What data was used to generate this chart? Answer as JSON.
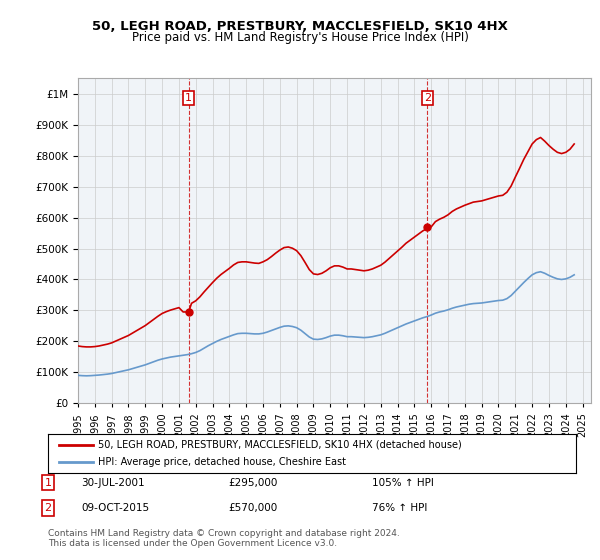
{
  "title": "50, LEGH ROAD, PRESTBURY, MACCLESFIELD, SK10 4HX",
  "subtitle": "Price paid vs. HM Land Registry's House Price Index (HPI)",
  "ylabel_ticks": [
    "£0",
    "£100K",
    "£200K",
    "£300K",
    "£400K",
    "£500K",
    "£600K",
    "£700K",
    "£800K",
    "£900K",
    "£1M"
  ],
  "ytick_values": [
    0,
    100000,
    200000,
    300000,
    400000,
    500000,
    600000,
    700000,
    800000,
    900000,
    1000000
  ],
  "ylim": [
    0,
    1050000
  ],
  "xlim_start": 1995.0,
  "xlim_end": 2025.5,
  "xlabel_years": [
    "1995",
    "1996",
    "1997",
    "1998",
    "1999",
    "2000",
    "2001",
    "2002",
    "2003",
    "2004",
    "2005",
    "2006",
    "2007",
    "2008",
    "2009",
    "2010",
    "2011",
    "2012",
    "2013",
    "2014",
    "2015",
    "2016",
    "2017",
    "2018",
    "2019",
    "2020",
    "2021",
    "2022",
    "2023",
    "2024",
    "2025"
  ],
  "sale1_x": 2001.58,
  "sale1_y": 295000,
  "sale1_label": "1",
  "sale2_x": 2015.77,
  "sale2_y": 570000,
  "sale2_label": "2",
  "sale_color": "#cc0000",
  "hpi_color": "#6699cc",
  "vline_color": "#cc0000",
  "grid_color": "#cccccc",
  "bg_color": "#ffffff",
  "plot_bg_color": "#f0f4f8",
  "legend_label_red": "50, LEGH ROAD, PRESTBURY, MACCLESFIELD, SK10 4HX (detached house)",
  "legend_label_blue": "HPI: Average price, detached house, Cheshire East",
  "annotation1_date": "30-JUL-2001",
  "annotation1_price": "£295,000",
  "annotation1_hpi": "105% ↑ HPI",
  "annotation2_date": "09-OCT-2015",
  "annotation2_price": "£570,000",
  "annotation2_hpi": "76% ↑ HPI",
  "footer": "Contains HM Land Registry data © Crown copyright and database right 2024.\nThis data is licensed under the Open Government Licence v3.0.",
  "hpi_data_x": [
    1995.0,
    1995.25,
    1995.5,
    1995.75,
    1996.0,
    1996.25,
    1996.5,
    1996.75,
    1997.0,
    1997.25,
    1997.5,
    1997.75,
    1998.0,
    1998.25,
    1998.5,
    1998.75,
    1999.0,
    1999.25,
    1999.5,
    1999.75,
    2000.0,
    2000.25,
    2000.5,
    2000.75,
    2001.0,
    2001.25,
    2001.5,
    2001.75,
    2002.0,
    2002.25,
    2002.5,
    2002.75,
    2003.0,
    2003.25,
    2003.5,
    2003.75,
    2004.0,
    2004.25,
    2004.5,
    2004.75,
    2005.0,
    2005.25,
    2005.5,
    2005.75,
    2006.0,
    2006.25,
    2006.5,
    2006.75,
    2007.0,
    2007.25,
    2007.5,
    2007.75,
    2008.0,
    2008.25,
    2008.5,
    2008.75,
    2009.0,
    2009.25,
    2009.5,
    2009.75,
    2010.0,
    2010.25,
    2010.5,
    2010.75,
    2011.0,
    2011.25,
    2011.5,
    2011.75,
    2012.0,
    2012.25,
    2012.5,
    2012.75,
    2013.0,
    2013.25,
    2013.5,
    2013.75,
    2014.0,
    2014.25,
    2014.5,
    2014.75,
    2015.0,
    2015.25,
    2015.5,
    2015.75,
    2016.0,
    2016.25,
    2016.5,
    2016.75,
    2017.0,
    2017.25,
    2017.5,
    2017.75,
    2018.0,
    2018.25,
    2018.5,
    2018.75,
    2019.0,
    2019.25,
    2019.5,
    2019.75,
    2020.0,
    2020.25,
    2020.5,
    2020.75,
    2021.0,
    2021.25,
    2021.5,
    2021.75,
    2022.0,
    2022.25,
    2022.5,
    2022.75,
    2023.0,
    2023.25,
    2023.5,
    2023.75,
    2024.0,
    2024.25,
    2024.5
  ],
  "hpi_data_y": [
    90000,
    89000,
    88500,
    89000,
    90000,
    91000,
    92500,
    94000,
    96000,
    99000,
    102000,
    105000,
    108000,
    112000,
    116000,
    120000,
    124000,
    129000,
    134000,
    139000,
    143000,
    146000,
    149000,
    151000,
    153000,
    155000,
    157000,
    160000,
    164000,
    170000,
    178000,
    186000,
    193000,
    200000,
    206000,
    211000,
    216000,
    221000,
    225000,
    226000,
    226000,
    225000,
    224000,
    224000,
    226000,
    230000,
    235000,
    240000,
    245000,
    249000,
    250000,
    248000,
    244000,
    236000,
    225000,
    214000,
    207000,
    206000,
    208000,
    212000,
    217000,
    220000,
    220000,
    218000,
    215000,
    215000,
    214000,
    213000,
    212000,
    213000,
    215000,
    218000,
    221000,
    226000,
    232000,
    238000,
    244000,
    250000,
    256000,
    261000,
    266000,
    271000,
    276000,
    280000,
    285000,
    291000,
    295000,
    298000,
    302000,
    307000,
    311000,
    314000,
    317000,
    320000,
    322000,
    323000,
    324000,
    326000,
    328000,
    330000,
    332000,
    333000,
    338000,
    348000,
    362000,
    376000,
    390000,
    403000,
    415000,
    422000,
    425000,
    420000,
    413000,
    407000,
    402000,
    400000,
    402000,
    407000,
    415000
  ],
  "red_data_x": [
    1995.0,
    1995.25,
    1995.5,
    1995.75,
    1996.0,
    1996.25,
    1996.5,
    1996.75,
    1997.0,
    1997.25,
    1997.5,
    1997.75,
    1998.0,
    1998.25,
    1998.5,
    1998.75,
    1999.0,
    1999.25,
    1999.5,
    1999.75,
    2000.0,
    2000.25,
    2000.5,
    2000.75,
    2001.0,
    2001.25,
    2001.58,
    2001.75,
    2002.0,
    2002.25,
    2002.5,
    2002.75,
    2003.0,
    2003.25,
    2003.5,
    2003.75,
    2004.0,
    2004.25,
    2004.5,
    2004.75,
    2005.0,
    2005.25,
    2005.5,
    2005.75,
    2006.0,
    2006.25,
    2006.5,
    2006.75,
    2007.0,
    2007.25,
    2007.5,
    2007.75,
    2008.0,
    2008.25,
    2008.5,
    2008.75,
    2009.0,
    2009.25,
    2009.5,
    2009.75,
    2010.0,
    2010.25,
    2010.5,
    2010.75,
    2011.0,
    2011.25,
    2011.5,
    2011.75,
    2012.0,
    2012.25,
    2012.5,
    2012.75,
    2013.0,
    2013.25,
    2013.5,
    2013.75,
    2014.0,
    2014.25,
    2014.5,
    2014.75,
    2015.0,
    2015.25,
    2015.5,
    2015.77,
    2016.0,
    2016.25,
    2016.5,
    2016.75,
    2017.0,
    2017.25,
    2017.5,
    2017.75,
    2018.0,
    2018.25,
    2018.5,
    2018.75,
    2019.0,
    2019.25,
    2019.5,
    2019.75,
    2020.0,
    2020.25,
    2020.5,
    2020.75,
    2021.0,
    2021.25,
    2021.5,
    2021.75,
    2022.0,
    2022.25,
    2022.5,
    2022.75,
    2023.0,
    2023.25,
    2023.5,
    2023.75,
    2024.0,
    2024.25,
    2024.5
  ],
  "red_data_y": [
    185000,
    183000,
    182000,
    182000,
    183000,
    185000,
    188000,
    191000,
    195000,
    201000,
    207000,
    213000,
    219000,
    227000,
    235000,
    243000,
    251000,
    261000,
    271000,
    281000,
    290000,
    296000,
    301000,
    305000,
    309000,
    295000,
    295000,
    323000,
    331000,
    344000,
    360000,
    375000,
    390000,
    404000,
    416000,
    426000,
    436000,
    447000,
    455000,
    457000,
    457000,
    455000,
    453000,
    452000,
    457000,
    464000,
    474000,
    485000,
    495000,
    503000,
    505000,
    501000,
    493000,
    477000,
    455000,
    432000,
    418000,
    416000,
    420000,
    428000,
    438000,
    444000,
    444000,
    440000,
    434000,
    434000,
    432000,
    430000,
    428000,
    430000,
    434000,
    440000,
    446000,
    456000,
    468000,
    480000,
    492000,
    504000,
    517000,
    527000,
    537000,
    547000,
    557000,
    565000,
    570000,
    587000,
    595000,
    601000,
    609000,
    620000,
    628000,
    634000,
    640000,
    645000,
    650000,
    652000,
    654000,
    658000,
    662000,
    666000,
    670000,
    672000,
    682000,
    702000,
    731000,
    759000,
    788000,
    813000,
    838000,
    852000,
    859000,
    847000,
    833000,
    821000,
    811000,
    807000,
    811000,
    821000,
    838000
  ]
}
